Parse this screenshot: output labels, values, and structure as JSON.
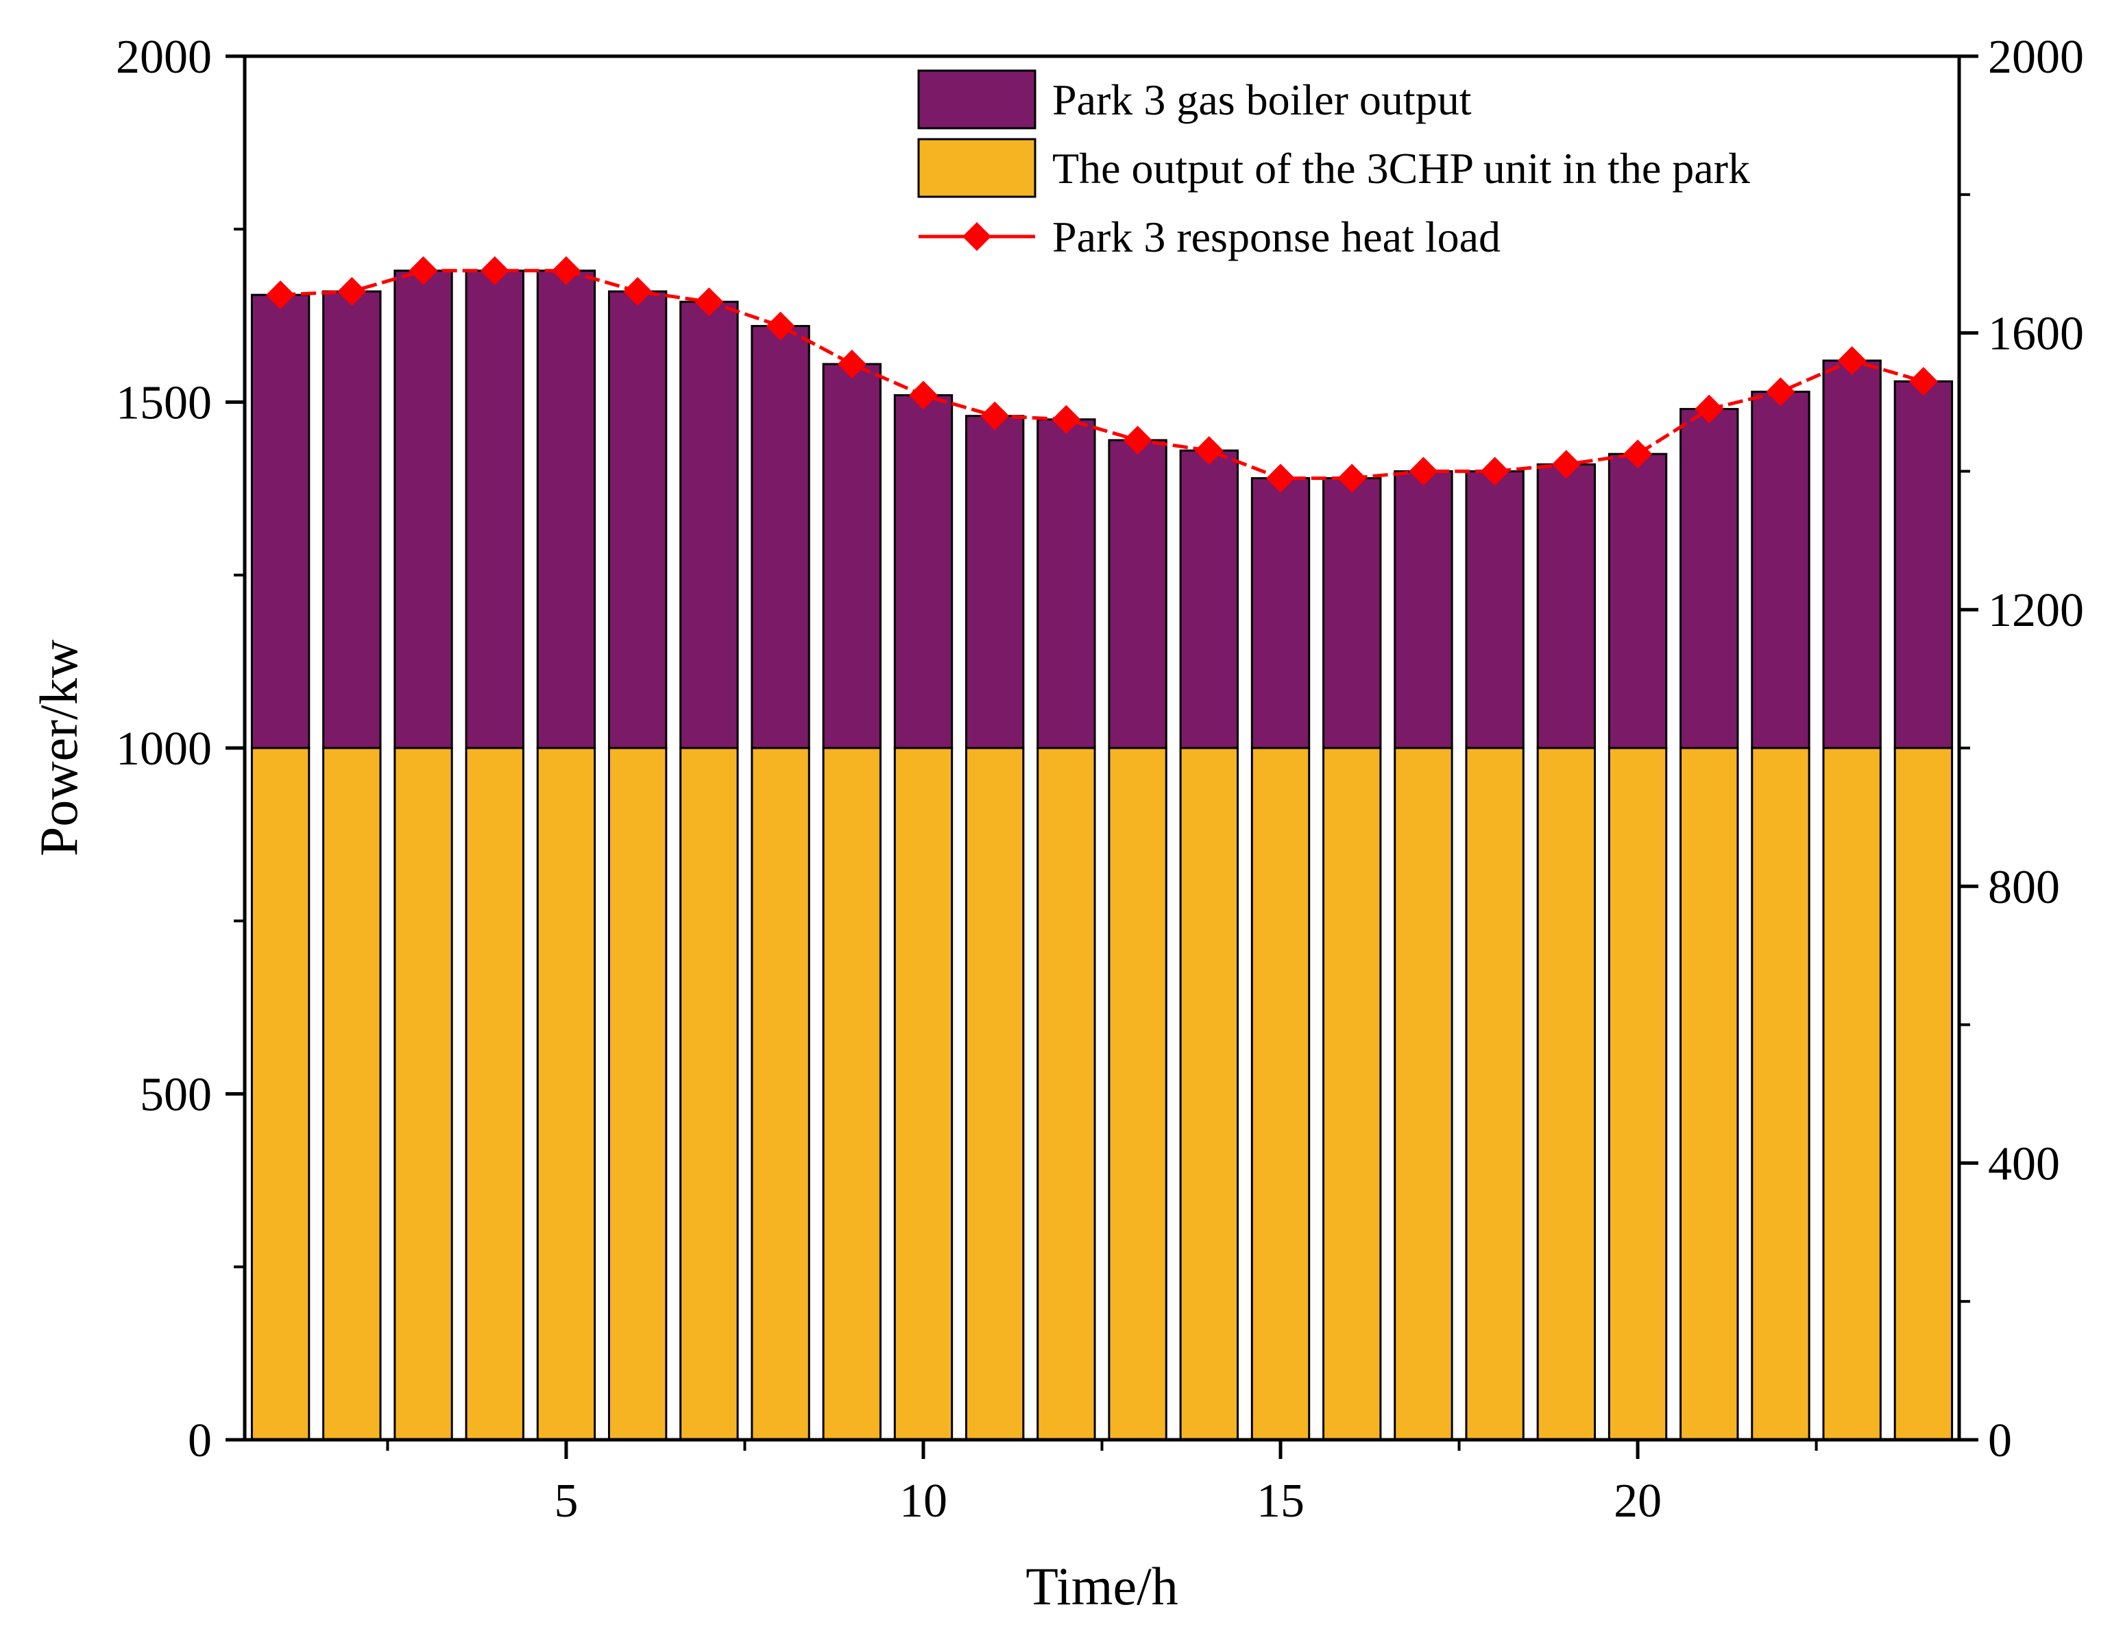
{
  "chart_data": {
    "type": "bar",
    "stacked": true,
    "x": [
      1,
      2,
      3,
      4,
      5,
      6,
      7,
      8,
      9,
      10,
      11,
      12,
      13,
      14,
      15,
      16,
      17,
      18,
      19,
      20,
      21,
      22,
      23,
      24
    ],
    "xlabel": "Time/h",
    "ylabel": "Power/kw",
    "xlim": [
      0.5,
      24.5
    ],
    "ylim": [
      0,
      2000
    ],
    "y2lim": [
      0,
      2000
    ],
    "x_ticks": [
      "5",
      "10",
      "15",
      "20"
    ],
    "y_ticks": [
      "0",
      "500",
      "1000",
      "1500",
      "2000"
    ],
    "y2_ticks": [
      "0",
      "400",
      "800",
      "1200",
      "1600",
      "2000"
    ],
    "grid": false,
    "legend_position": "top-right",
    "series": [
      {
        "name": "Park 3 gas boiler output",
        "kind": "bar",
        "color": "#7B1A67",
        "values": [
          655,
          660,
          690,
          690,
          690,
          660,
          645,
          610,
          555,
          510,
          480,
          475,
          445,
          430,
          390,
          390,
          400,
          400,
          410,
          425,
          490,
          515,
          560,
          530
        ]
      },
      {
        "name": "The output of the 3CHP unit in the park",
        "kind": "bar",
        "color": "#F7B422",
        "values": [
          1000,
          1000,
          1000,
          1000,
          1000,
          1000,
          1000,
          1000,
          1000,
          1000,
          1000,
          1000,
          1000,
          1000,
          1000,
          1000,
          1000,
          1000,
          1000,
          1000,
          1000,
          1000,
          1000,
          1000
        ]
      },
      {
        "name": "Park 3 response heat load",
        "kind": "line",
        "color": "#FF0000",
        "marker": "diamond",
        "values": [
          1655,
          1660,
          1690,
          1690,
          1690,
          1660,
          1645,
          1610,
          1555,
          1510,
          1480,
          1475,
          1445,
          1430,
          1390,
          1390,
          1400,
          1400,
          1410,
          1425,
          1490,
          1515,
          1560,
          1530
        ]
      }
    ]
  }
}
